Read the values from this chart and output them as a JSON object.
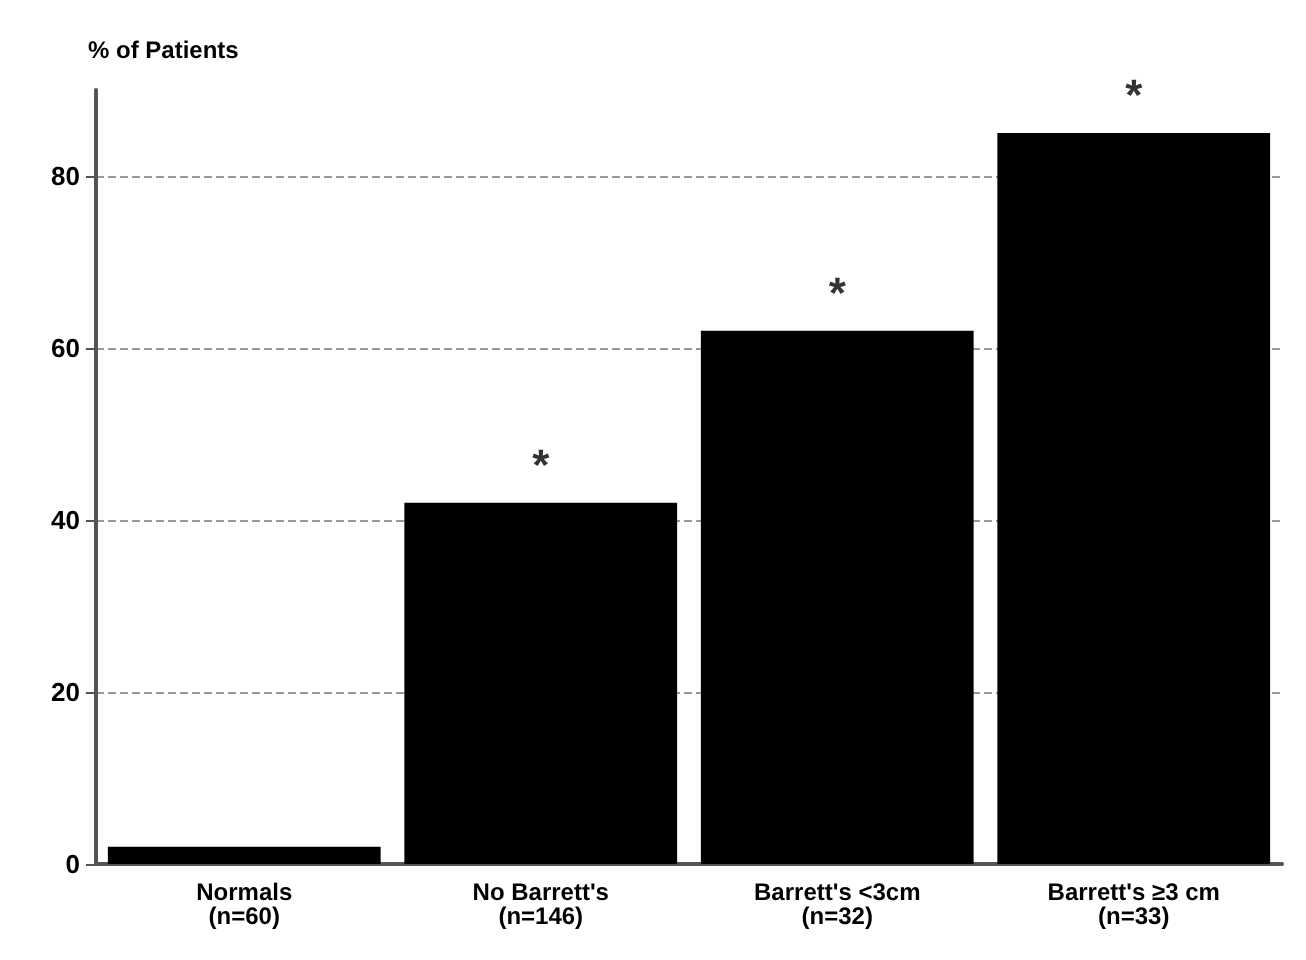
{
  "chart_data": {
    "type": "bar",
    "ylabel": "% of Patients",
    "categories": [
      "Normals\n(n=60)",
      "No Barrett's\n(n=146)",
      "Barrett's <3cm\n(n=32)",
      "Barrett's ≥3 cm\n(n=33)"
    ],
    "values": [
      2,
      42,
      62,
      85
    ],
    "color": "#000000",
    "ylim": [
      0,
      90
    ],
    "yticks": [
      0,
      20,
      40,
      60,
      80
    ],
    "grid": "y",
    "annotations": [
      {
        "text": "*",
        "x": "No Barrett's\n(n=146)",
        "y": 42
      },
      {
        "text": "*",
        "x": "Barrett's <3cm\n(n=32)",
        "y": 62
      },
      {
        "text": "*",
        "x": "Barrett's ≥3 cm\n(n=33)",
        "y": 85
      }
    ]
  }
}
